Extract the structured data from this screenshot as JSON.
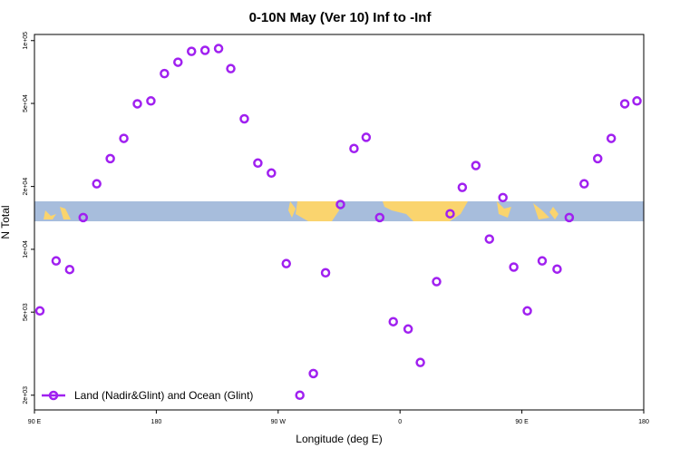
{
  "chart_data": {
    "type": "scatter",
    "title": "0-10N May (Ver 10)   Inf to -Inf",
    "x_label": "Longitude (deg E)",
    "y_label": "N Total",
    "log_y": true,
    "legend": "bottomleft",
    "xlim": [
      90,
      540
    ],
    "ylim": [
      1700,
      107000
    ],
    "xticks": [
      {
        "value": 90,
        "label": "90 E"
      },
      {
        "value": 180,
        "label": "180"
      },
      {
        "value": 270,
        "label": "90 W"
      },
      {
        "value": 360,
        "label": "0"
      },
      {
        "value": 450,
        "label": "90 E"
      },
      {
        "value": 540,
        "label": "180"
      }
    ],
    "yticks": [
      {
        "value": 2000,
        "label": "2e+03"
      },
      {
        "value": 5000,
        "label": "5e+03"
      },
      {
        "value": 10000,
        "label": "1e+04"
      },
      {
        "value": 20000,
        "label": "2e+04"
      },
      {
        "value": 50000,
        "label": "5e+04"
      },
      {
        "value": 100000,
        "label": "1e+05"
      }
    ],
    "series": [
      {
        "name": "Land (Nadir&Glint) and Ocean (Glint)",
        "color": "#a020f0",
        "x": [
          94,
          106,
          116,
          126,
          136,
          146,
          156,
          166,
          176,
          186,
          196,
          206,
          216,
          226,
          235,
          245,
          255,
          265,
          276,
          286,
          296,
          305,
          316,
          326,
          335,
          345,
          355,
          366,
          375,
          387,
          397,
          406,
          416,
          426,
          436,
          444,
          454,
          465,
          476,
          485,
          496,
          506,
          516,
          526,
          535
        ],
        "values": [
          5070,
          8800,
          8000,
          14200,
          20600,
          27200,
          34000,
          49800,
          51400,
          69500,
          78800,
          88800,
          89800,
          91600,
          73400,
          42200,
          25900,
          23200,
          8540,
          2000,
          2540,
          7720,
          16400,
          30400,
          34400,
          14200,
          4500,
          4150,
          2870,
          7000,
          14800,
          19800,
          25200,
          11200,
          17700,
          8220,
          5070,
          8800,
          8040,
          14200,
          20600,
          27200,
          34000,
          49800,
          51400
        ]
      }
    ]
  }
}
